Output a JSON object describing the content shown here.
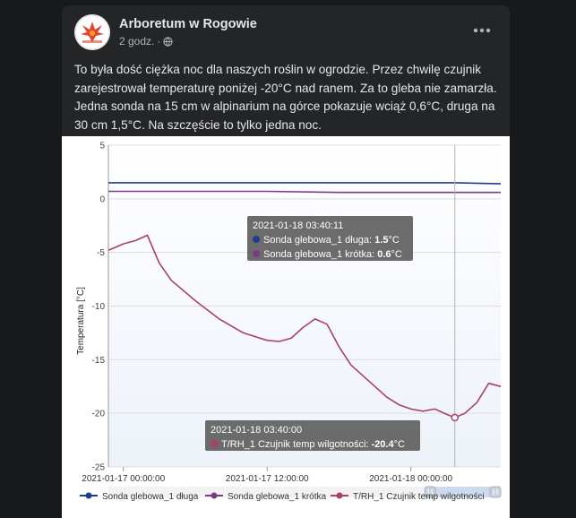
{
  "post": {
    "page_name": "Arboretum w Rogowie",
    "time": "2 godz.",
    "separator": "·",
    "text": "To była dość ciężka noc dla naszych roślin w ogrodzie. Przez chwilę czujnik zarejestrował temperaturę poniżej -20°C nad ranem. Za to gleba nie zamarzła. Jedna sonda na 15 cm w alpinarium na górce pokazuje wciąż 0,6°C, druga na 30 cm 1,5°C. Na szczęście to tylko jedna noc.",
    "avatar_icon": "arboretum-logo-icon",
    "more_icon": "more-horizontal-icon",
    "privacy_icon": "globe-icon"
  },
  "chart_data": {
    "type": "line",
    "ylabel": "Temperatura [°C]",
    "ylim": [
      -25,
      5
    ],
    "yticks": [
      "5",
      "0",
      "-5",
      "-10",
      "-15",
      "-20",
      "-25"
    ],
    "xticks": [
      "2021-01-17 00:00:00",
      "2021-01-17 12:00:00",
      "2021-01-18 00:00:00"
    ],
    "x_range": [
      "2021-01-16 22:45",
      "2021-01-18 07:30"
    ],
    "grid": true,
    "legend_position": "bottom",
    "crosshair_time": "2021-01-18 03:40",
    "series": [
      {
        "name": "Sonda glebowa_1 długa",
        "color": "#1f3d8f",
        "points": [
          [
            "2021-01-16 22:45",
            1.5
          ],
          [
            "2021-01-17 12:00",
            1.5
          ],
          [
            "2021-01-18 00:00",
            1.5
          ],
          [
            "2021-01-18 03:40",
            1.5
          ],
          [
            "2021-01-18 07:30",
            1.4
          ]
        ]
      },
      {
        "name": "Sonda glebowa_1 krótka",
        "color": "#7a3a86",
        "points": [
          [
            "2021-01-16 22:45",
            0.7
          ],
          [
            "2021-01-17 12:00",
            0.7
          ],
          [
            "2021-01-17 18:00",
            0.6
          ],
          [
            "2021-01-18 03:40",
            0.6
          ],
          [
            "2021-01-18 07:30",
            0.6
          ]
        ]
      },
      {
        "name": "T/RH_1 Czujnik temp wilgotności",
        "color": "#a8406b",
        "points": [
          [
            "2021-01-16 22:45",
            -4.8
          ],
          [
            "2021-01-17 00:00",
            -4.2
          ],
          [
            "2021-01-17 01:00",
            -3.9
          ],
          [
            "2021-01-17 02:00",
            -3.4
          ],
          [
            "2021-01-17 03:00",
            -6.0
          ],
          [
            "2021-01-17 04:00",
            -7.6
          ],
          [
            "2021-01-17 06:00",
            -9.5
          ],
          [
            "2021-01-17 08:00",
            -11.2
          ],
          [
            "2021-01-17 10:00",
            -12.5
          ],
          [
            "2021-01-17 12:00",
            -13.2
          ],
          [
            "2021-01-17 13:00",
            -13.3
          ],
          [
            "2021-01-17 14:00",
            -13.0
          ],
          [
            "2021-01-17 15:00",
            -12.0
          ],
          [
            "2021-01-17 16:00",
            -11.2
          ],
          [
            "2021-01-17 17:00",
            -11.7
          ],
          [
            "2021-01-17 18:00",
            -13.8
          ],
          [
            "2021-01-17 19:00",
            -15.5
          ],
          [
            "2021-01-17 20:00",
            -16.5
          ],
          [
            "2021-01-17 21:00",
            -17.5
          ],
          [
            "2021-01-17 22:00",
            -18.5
          ],
          [
            "2021-01-17 23:00",
            -19.2
          ],
          [
            "2021-01-18 00:00",
            -19.6
          ],
          [
            "2021-01-18 01:00",
            -19.8
          ],
          [
            "2021-01-18 02:00",
            -19.6
          ],
          [
            "2021-01-18 03:00",
            -20.1
          ],
          [
            "2021-01-18 03:40",
            -20.4
          ],
          [
            "2021-01-18 04:30",
            -20.0
          ],
          [
            "2021-01-18 05:30",
            -19.0
          ],
          [
            "2021-01-18 06:30",
            -17.2
          ],
          [
            "2021-01-18 07:30",
            -17.5
          ]
        ]
      }
    ],
    "tooltip_top": {
      "title": "2021-01-18 03:40:11",
      "rows": [
        {
          "name": "Sonda glebowa_1 długa",
          "value": "1.5",
          "unit": "°C",
          "color": "#1f3d8f"
        },
        {
          "name": "Sonda glebowa_1 krótka",
          "value": "0.6",
          "unit": "°C",
          "color": "#7a3a86"
        }
      ]
    },
    "tooltip_bottom": {
      "title": "2021-01-18 03:40:00",
      "rows": [
        {
          "name": "T/RH_1 Czujnik temp wilgotności",
          "value": "-20.4",
          "unit": "°C",
          "color": "#a8406b"
        }
      ]
    },
    "legend": [
      {
        "name": "Sonda glebowa_1 długa",
        "color": "#1f3d8f"
      },
      {
        "name": "Sonda glebowa_1 krótka",
        "color": "#7a3a86"
      },
      {
        "name": "T/RH_1 Czujnik temp wilgotności",
        "color": "#a8406b"
      }
    ],
    "navigator_range": [
      0.82,
      1.0
    ]
  }
}
